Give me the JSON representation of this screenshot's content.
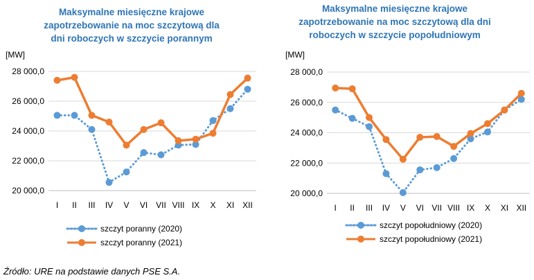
{
  "chart_data": [
    {
      "type": "line",
      "title_lines": [
        "Maksymalne miesięczne krajowe",
        "zapotrzebowanie na moc szczytową dla",
        "dni roboczych w szczycie porannym"
      ],
      "ylabel": "[MW]",
      "ylim": [
        20000,
        28000
      ],
      "yticks": [
        20000,
        22000,
        24000,
        26000,
        28000
      ],
      "ytick_labels": [
        "20 000,0",
        "22 000,0",
        "24 000,0",
        "26 000,0",
        "28 000,0"
      ],
      "categories": [
        "I",
        "II",
        "III",
        "IV",
        "V",
        "VI",
        "VII",
        "VIII",
        "IX",
        "X",
        "XI",
        "XII"
      ],
      "grid": "horizontal",
      "legend": "bottom",
      "series": [
        {
          "name": "szczyt poranny (2020)",
          "color": "#5b9bd5",
          "style": "dotted",
          "values": [
            25050,
            25050,
            24100,
            20550,
            21250,
            22550,
            22400,
            23050,
            23100,
            24700,
            25500,
            26800
          ]
        },
        {
          "name": "szczyt poranny (2021)",
          "color": "#ed7d31",
          "style": "solid",
          "values": [
            27400,
            27600,
            25050,
            24600,
            23050,
            24100,
            24550,
            23350,
            23450,
            23850,
            26450,
            27550
          ]
        }
      ]
    },
    {
      "type": "line",
      "title_lines": [
        "Maksymalne miesięczne krajowe",
        "zapotrzebowanie na moc szczytową dla dni",
        "roboczych w szczycie popołudniowym"
      ],
      "ylabel": "[MW]",
      "ylim": [
        20000,
        28000
      ],
      "yticks": [
        20000,
        22000,
        24000,
        26000,
        28000
      ],
      "ytick_labels": [
        "20 000,0",
        "22 000,0",
        "24 000,0",
        "26 000,0",
        "28 000,0"
      ],
      "categories": [
        "I",
        "II",
        "III",
        "IV",
        "V",
        "VI",
        "VII",
        "VIII",
        "IX",
        "X",
        "XI",
        "XII"
      ],
      "grid": "horizontal",
      "legend": "bottom",
      "series": [
        {
          "name": "szczyt popołudniowy (2020)",
          "color": "#5b9bd5",
          "style": "dotted",
          "values": [
            25500,
            24950,
            24400,
            21300,
            20050,
            21550,
            21700,
            22300,
            23600,
            24050,
            25500,
            26200
          ]
        },
        {
          "name": "szczyt popołudniowy (2021)",
          "color": "#ed7d31",
          "style": "solid",
          "values": [
            26950,
            26900,
            25000,
            23550,
            22250,
            23700,
            23750,
            23100,
            23950,
            24600,
            25500,
            26600
          ]
        }
      ]
    }
  ],
  "source_note": "Źródło: URE na podstawie danych PSE S.A."
}
